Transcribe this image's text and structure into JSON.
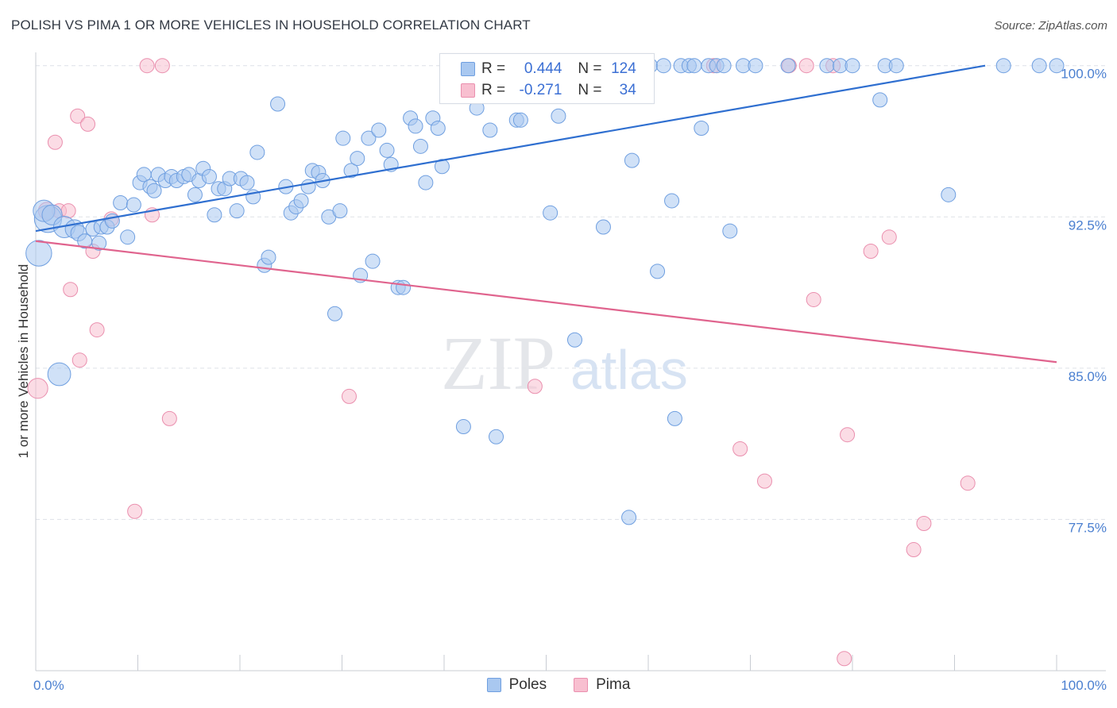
{
  "header": {
    "title": "POLISH VS PIMA 1 OR MORE VEHICLES IN HOUSEHOLD CORRELATION CHART",
    "source": "Source: ZipAtlas.com"
  },
  "watermark": {
    "zip": "ZIP",
    "atlas": "atlas"
  },
  "legend": {
    "rows": [
      {
        "r_label": "R =",
        "r_value": "0.444",
        "n_label": "N =",
        "n_value": "124",
        "color": "#a9c8f0",
        "stroke": "#6f9fe0"
      },
      {
        "r_label": "R =",
        "r_value": "-0.271",
        "n_label": "N =",
        "n_value": "34",
        "color": "#f8bfd0",
        "stroke": "#ea8fae"
      }
    ]
  },
  "bottom_legend": {
    "poles": "Poles",
    "pima": "Pima"
  },
  "chart_data": {
    "type": "scatter",
    "title": "POLISH VS PIMA 1 OR MORE VEHICLES IN HOUSEHOLD CORRELATION CHART",
    "xlabel": "",
    "ylabel": "1 or more Vehicles in Household",
    "xlim": [
      0,
      100
    ],
    "ylim": [
      70.0,
      100.5
    ],
    "x_tick_labels": [
      "0.0%",
      "100.0%"
    ],
    "y_ticks": [
      77.5,
      85.0,
      92.5,
      100.0
    ],
    "y_tick_labels": [
      "77.5%",
      "85.0%",
      "92.5%",
      "100.0%"
    ],
    "grid": true,
    "legend_position": "bottom",
    "colors": {
      "poles": "#6f9fe0",
      "poles_fill": "#a9c8f0",
      "poles_line": "#2f6fd0",
      "pima": "#ea8fae",
      "pima_fill": "#f8bfd0",
      "pima_line": "#e0648e"
    },
    "series": [
      {
        "name": "Poles",
        "trend": {
          "x": [
            0,
            93
          ],
          "y": [
            91.8,
            100.0
          ]
        },
        "points": [
          [
            0.3,
            90.7,
            1.8
          ],
          [
            2.3,
            84.7,
            1.6
          ],
          [
            1.2,
            92.4,
            1.9
          ],
          [
            0.8,
            92.8,
            1.5
          ],
          [
            1.6,
            92.6,
            1.4
          ],
          [
            2.8,
            92.0,
            1.5
          ],
          [
            3.8,
            91.9,
            1.3
          ],
          [
            4.2,
            91.7,
            1.1
          ],
          [
            4.8,
            91.3,
            1.0
          ],
          [
            5.6,
            91.9,
            1.0
          ],
          [
            6.4,
            92.0,
            1.0
          ],
          [
            6.2,
            91.2,
            1.0
          ],
          [
            7.0,
            92.0,
            1.0
          ],
          [
            7.5,
            92.3,
            1.0
          ],
          [
            8.3,
            93.2,
            1.0
          ],
          [
            9.0,
            91.5,
            1.0
          ],
          [
            9.6,
            93.1,
            1.0
          ],
          [
            10.2,
            94.2,
            1.0
          ],
          [
            10.6,
            94.6,
            1.0
          ],
          [
            11.2,
            94.0,
            1.0
          ],
          [
            11.6,
            93.8,
            1.0
          ],
          [
            12.0,
            94.6,
            1.0
          ],
          [
            12.7,
            94.3,
            1.0
          ],
          [
            13.3,
            94.5,
            1.0
          ],
          [
            13.8,
            94.3,
            1.0
          ],
          [
            14.5,
            94.5,
            1.0
          ],
          [
            15.0,
            94.6,
            1.0
          ],
          [
            15.6,
            93.6,
            1.0
          ],
          [
            16.0,
            94.3,
            1.0
          ],
          [
            16.4,
            94.9,
            1.0
          ],
          [
            17.0,
            94.5,
            1.0
          ],
          [
            17.5,
            92.6,
            1.0
          ],
          [
            17.9,
            93.9,
            1.0
          ],
          [
            18.5,
            93.9,
            1.0
          ],
          [
            19.0,
            94.4,
            1.0
          ],
          [
            19.7,
            92.8,
            1.0
          ],
          [
            20.1,
            94.4,
            1.0
          ],
          [
            20.7,
            94.2,
            1.0
          ],
          [
            21.3,
            93.5,
            1.0
          ],
          [
            21.7,
            95.7,
            1.0
          ],
          [
            22.4,
            90.1,
            1.0
          ],
          [
            22.8,
            90.5,
            1.0
          ],
          [
            23.7,
            98.1,
            1.0
          ],
          [
            24.5,
            94.0,
            1.0
          ],
          [
            25.0,
            92.7,
            1.0
          ],
          [
            25.5,
            93.0,
            1.0
          ],
          [
            26.0,
            93.3,
            1.0
          ],
          [
            26.7,
            94.0,
            1.0
          ],
          [
            27.1,
            94.8,
            1.0
          ],
          [
            27.7,
            94.7,
            1.0
          ],
          [
            28.1,
            94.3,
            1.0
          ],
          [
            28.7,
            92.5,
            1.0
          ],
          [
            29.3,
            87.7,
            1.0
          ],
          [
            29.8,
            92.8,
            1.0
          ],
          [
            30.1,
            96.4,
            1.0
          ],
          [
            30.9,
            94.8,
            1.0
          ],
          [
            31.5,
            95.4,
            1.0
          ],
          [
            31.8,
            89.6,
            1.0
          ],
          [
            32.6,
            96.4,
            1.0
          ],
          [
            33.0,
            90.3,
            1.0
          ],
          [
            33.6,
            96.8,
            1.0
          ],
          [
            34.4,
            95.8,
            1.0
          ],
          [
            34.8,
            95.1,
            1.0
          ],
          [
            35.5,
            89.0,
            1.0
          ],
          [
            36.0,
            89.0,
            1.0
          ],
          [
            36.7,
            97.4,
            1.0
          ],
          [
            37.2,
            97.0,
            1.0
          ],
          [
            37.7,
            96.0,
            1.0
          ],
          [
            38.2,
            94.2,
            1.0
          ],
          [
            38.9,
            97.4,
            1.0
          ],
          [
            39.4,
            96.9,
            1.0
          ],
          [
            39.8,
            95.0,
            1.0
          ],
          [
            40.6,
            100.0,
            1.0
          ],
          [
            41.3,
            100.0,
            1.0
          ],
          [
            41.9,
            82.1,
            1.0
          ],
          [
            42.7,
            100.0,
            1.0
          ],
          [
            43.2,
            97.9,
            1.0
          ],
          [
            43.9,
            100.0,
            1.0
          ],
          [
            44.5,
            96.8,
            1.0
          ],
          [
            45.1,
            81.6,
            1.0
          ],
          [
            45.5,
            100.0,
            1.0
          ],
          [
            46.5,
            100.0,
            1.0
          ],
          [
            47.1,
            97.3,
            1.0
          ],
          [
            47.5,
            97.3,
            1.0
          ],
          [
            48.2,
            100.0,
            1.0
          ],
          [
            48.9,
            100.0,
            1.0
          ],
          [
            49.4,
            100.0,
            1.0
          ],
          [
            50.0,
            100.0,
            1.0
          ],
          [
            50.5,
            100.0,
            1.0
          ],
          [
            51.2,
            97.5,
            1.0
          ],
          [
            51.7,
            100.0,
            1.0
          ],
          [
            52.3,
            100.0,
            1.0
          ],
          [
            52.8,
            86.4,
            1.0
          ],
          [
            53.5,
            100.0,
            1.0
          ],
          [
            54.0,
            100.0,
            1.0
          ],
          [
            54.8,
            100.0,
            1.0
          ],
          [
            55.2,
            100.0,
            1.0
          ],
          [
            55.6,
            92.0,
            1.0
          ],
          [
            56.3,
            100.0,
            1.0
          ],
          [
            56.9,
            100.0,
            1.0
          ],
          [
            57.4,
            100.0,
            1.0
          ],
          [
            58.1,
            77.6,
            1.0
          ],
          [
            58.4,
            95.3,
            1.0
          ],
          [
            59.0,
            100.0,
            1.0
          ],
          [
            59.8,
            100.0,
            1.0
          ],
          [
            60.2,
            100.0,
            1.0
          ],
          [
            60.9,
            89.8,
            1.0
          ],
          [
            61.5,
            100.0,
            1.0
          ],
          [
            62.3,
            93.3,
            1.0
          ],
          [
            62.6,
            82.5,
            1.0
          ],
          [
            63.2,
            100.0,
            1.0
          ],
          [
            64.0,
            100.0,
            1.0
          ],
          [
            64.5,
            100.0,
            1.0
          ],
          [
            65.2,
            96.9,
            1.0
          ],
          [
            65.9,
            100.0,
            1.0
          ],
          [
            66.7,
            100.0,
            1.0
          ],
          [
            67.4,
            100.0,
            1.0
          ],
          [
            68.0,
            91.8,
            1.0
          ],
          [
            69.3,
            100.0,
            1.0
          ],
          [
            70.5,
            100.0,
            1.0
          ],
          [
            73.7,
            100.0,
            1.0
          ],
          [
            77.5,
            100.0,
            1.0
          ],
          [
            78.8,
            100.0,
            1.0
          ],
          [
            80.0,
            100.0,
            1.0
          ],
          [
            82.7,
            98.3,
            1.0
          ],
          [
            83.2,
            100.0,
            1.0
          ],
          [
            84.3,
            100.0,
            1.0
          ],
          [
            89.4,
            93.6,
            1.0
          ],
          [
            94.8,
            100.0,
            1.0
          ],
          [
            98.3,
            100.0,
            1.0
          ],
          [
            50.4,
            92.7,
            1.0
          ],
          [
            56.8,
            100.0,
            1.0
          ],
          [
            53.9,
            100.0,
            1.0
          ],
          [
            100.0,
            100.0,
            1.0
          ]
        ]
      },
      {
        "name": "Pima",
        "trend": {
          "x": [
            0,
            100
          ],
          "y": [
            91.3,
            85.3
          ]
        },
        "points": [
          [
            0.2,
            84.0,
            1.4
          ],
          [
            1.1,
            92.8,
            1.2
          ],
          [
            1.9,
            96.2,
            1.0
          ],
          [
            2.3,
            92.8,
            1.0
          ],
          [
            3.2,
            92.8,
            1.0
          ],
          [
            3.4,
            88.9,
            1.0
          ],
          [
            4.1,
            97.5,
            1.0
          ],
          [
            4.3,
            85.4,
            1.0
          ],
          [
            5.1,
            97.1,
            1.0
          ],
          [
            5.6,
            90.8,
            1.0
          ],
          [
            6.0,
            86.9,
            1.0
          ],
          [
            7.4,
            92.4,
            1.0
          ],
          [
            9.7,
            77.9,
            1.0
          ],
          [
            10.9,
            100.0,
            1.0
          ],
          [
            11.4,
            92.6,
            1.0
          ],
          [
            12.4,
            100.0,
            1.0
          ],
          [
            13.1,
            82.5,
            1.0
          ],
          [
            30.7,
            83.6,
            1.0
          ],
          [
            48.2,
            100.0,
            1.0
          ],
          [
            48.9,
            84.1,
            1.0
          ],
          [
            66.4,
            100.0,
            1.0
          ],
          [
            69.0,
            81.0,
            1.0
          ],
          [
            71.4,
            79.4,
            1.0
          ],
          [
            73.8,
            100.0,
            1.0
          ],
          [
            75.5,
            100.0,
            1.0
          ],
          [
            76.2,
            88.4,
            1.0
          ],
          [
            78.1,
            100.0,
            1.0
          ],
          [
            79.2,
            70.6,
            1.0
          ],
          [
            79.5,
            81.7,
            1.0
          ],
          [
            81.8,
            90.8,
            1.0
          ],
          [
            83.6,
            91.5,
            1.0
          ],
          [
            86.0,
            76.0,
            1.0
          ],
          [
            87.0,
            77.3,
            1.0
          ],
          [
            91.3,
            79.3,
            1.0
          ]
        ]
      }
    ]
  }
}
